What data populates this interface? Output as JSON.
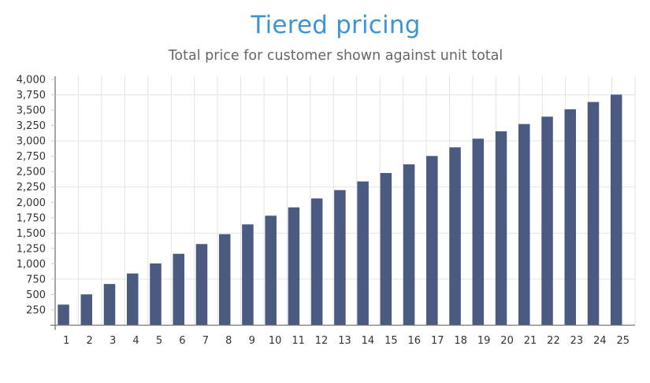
{
  "header": {
    "title": "Tiered pricing",
    "subtitle": "Total price for customer shown against unit total"
  },
  "colors": {
    "title": "#3d95d6",
    "subtitle": "#666666",
    "bar": "#4a5a80",
    "grid": "#e3e3e3",
    "axis": "#777777",
    "tick_label": "#333333"
  },
  "chart_data": {
    "type": "bar",
    "title": "Tiered pricing",
    "subtitle": "Total price for customer shown against unit total",
    "xlabel": "",
    "ylabel": "",
    "categories": [
      "1",
      "2",
      "3",
      "4",
      "5",
      "6",
      "7",
      "8",
      "9",
      "10",
      "11",
      "12",
      "13",
      "14",
      "15",
      "16",
      "17",
      "18",
      "19",
      "20",
      "21",
      "22",
      "23",
      "24",
      "25"
    ],
    "values": [
      335,
      502,
      670,
      842,
      1005,
      1162,
      1321,
      1482,
      1641,
      1782,
      1918,
      2063,
      2199,
      2340,
      2477,
      2618,
      2754,
      2895,
      3036,
      3155,
      3274,
      3394,
      3514,
      3633,
      3753
    ],
    "ylim": [
      0,
      4000
    ],
    "yticks": [
      250,
      500,
      750,
      1000,
      1250,
      1500,
      1750,
      2000,
      2250,
      2500,
      2750,
      3000,
      3250,
      3500,
      3750,
      4000
    ],
    "ytick_labels": [
      "250",
      "500",
      "750",
      "1,000",
      "1,250",
      "1,500",
      "1,750",
      "2,000",
      "2,250",
      "2,500",
      "2,750",
      "3,000",
      "3,250",
      "3,500",
      "3,750",
      "4,000"
    ],
    "horizontal_gridlines": [
      750,
      1500,
      2250,
      3000,
      3750
    ],
    "vertical_gridlines": true,
    "legend": null
  }
}
